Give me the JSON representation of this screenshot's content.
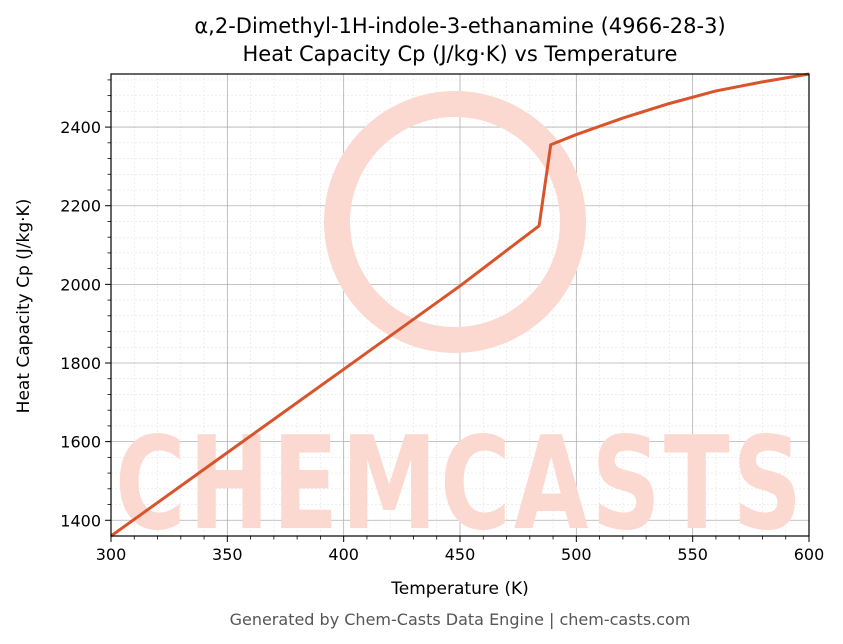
{
  "title_line1": "α,2-Dimethyl-1H-indole-3-ethanamine (4966-28-3)",
  "title_line2": "Heat Capacity Cp (J/kg·K) vs Temperature",
  "watermark": "CHEMCASTS",
  "footer": "Generated by Chem-Casts Data Engine | chem-casts.com",
  "colors": {
    "line": "#d9542b",
    "watermark": "#fcd9d0",
    "grid_major": "#b0b0b0",
    "grid_minor": "#e4e4e4"
  },
  "chart_data": {
    "type": "line",
    "title": "α,2-Dimethyl-1H-indole-3-ethanamine (4966-28-3)\nHeat Capacity Cp (J/kg·K) vs Temperature",
    "xlabel": "Temperature (K)",
    "ylabel": "Heat Capacity Cp (J/kg·K)",
    "xlim": [
      300,
      600
    ],
    "ylim": [
      1360,
      2535
    ],
    "xticks": [
      300,
      350,
      400,
      450,
      500,
      550,
      600
    ],
    "yticks": [
      1400,
      1600,
      1800,
      2000,
      2200,
      2400
    ],
    "grid": true,
    "series": [
      {
        "x": [
          300,
          350,
          400,
          450,
          484,
          489,
          500,
          520,
          540,
          560,
          580,
          600
        ],
        "y": [
          1360,
          1572,
          1784,
          1996,
          2149,
          2355,
          2381,
          2423,
          2460,
          2492,
          2515,
          2535
        ]
      }
    ]
  }
}
